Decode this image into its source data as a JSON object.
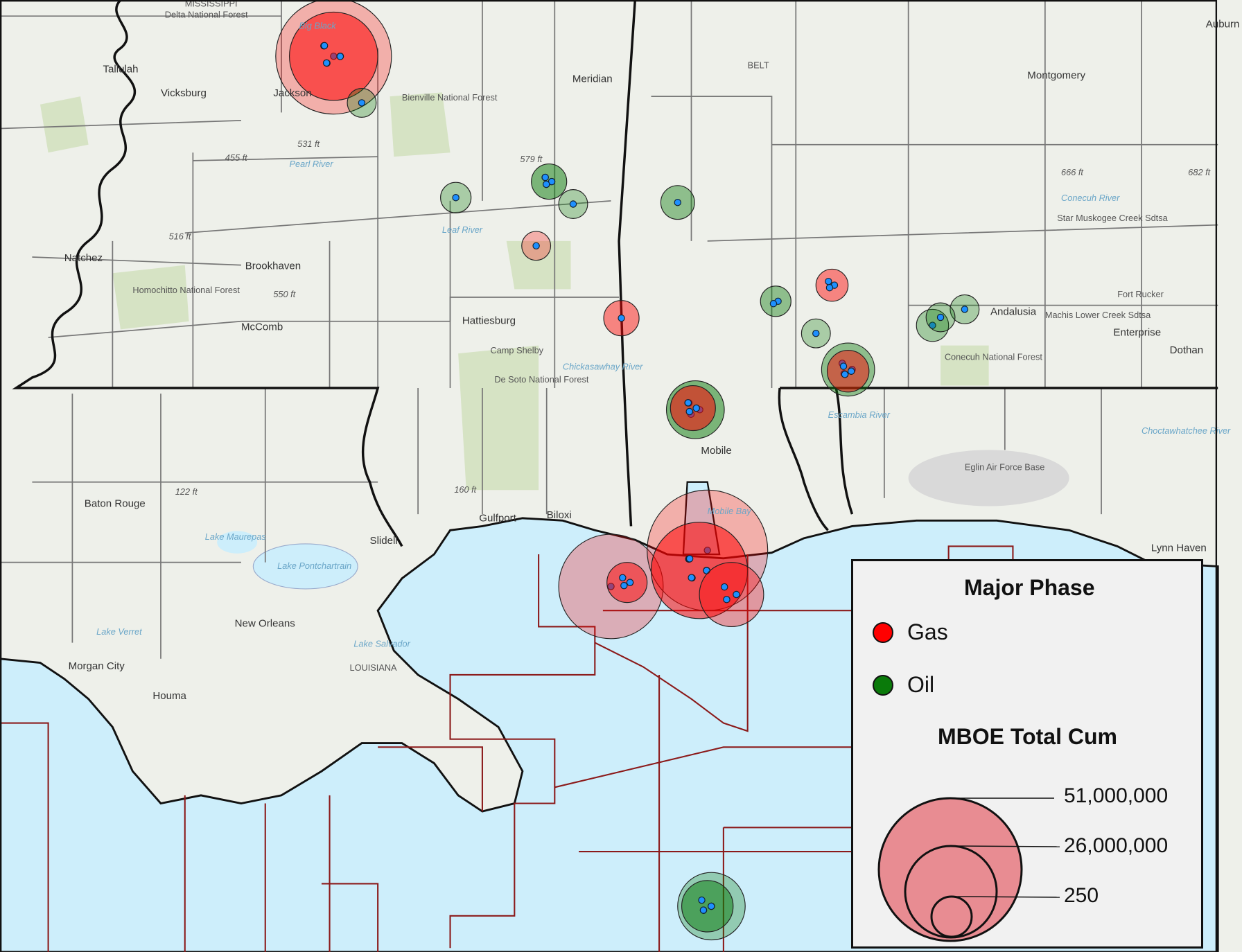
{
  "legend": {
    "phase_title": "Major Phase",
    "phases": [
      {
        "label": "Gas",
        "color": "#ff0000"
      },
      {
        "label": "Oil",
        "color": "#0a7a0a"
      }
    ],
    "size_title": "MBOE Total Cum",
    "size_values": [
      "51,000,000",
      "26,000,000",
      "250"
    ],
    "size_fill": "#e88c92"
  },
  "colors": {
    "land": "#eef0ea",
    "water": "#cdeefb",
    "forest": "#d6e3c4",
    "lease_lines": "#8b1a1a",
    "well_dot": "#1e90ff"
  },
  "map_labels": {
    "cities": [
      "Vicksburg",
      "Jackson",
      "Meridian",
      "Natchez",
      "Brookhaven",
      "McComb",
      "Hattiesburg",
      "Baton Rouge",
      "Slidell",
      "Gulfport",
      "Biloxi",
      "Mobile",
      "New Orleans",
      "Morgan City",
      "Houma",
      "Montgomery",
      "Andalusia",
      "Enterprise",
      "Dothan",
      "Auburn",
      "Tallulah",
      "Lynn Haven"
    ],
    "parks": [
      "Delta National Forest",
      "Bienville National Forest",
      "Homochitto National Forest",
      "Camp Shelby",
      "De Soto National Forest",
      "Conecuh National Forest",
      "Eglin Air Force Base",
      "Fort Rucker",
      "Star Muskogee Creek Sdtsa",
      "Machis Lower Creek Sdtsa"
    ],
    "water": [
      "Pearl River",
      "Leaf River",
      "Chickasawhay River",
      "Escambia River",
      "Conecuh River",
      "Choctawhatchee River",
      "Lake Maurepas",
      "Lake Pontchartrain",
      "Lake Verret",
      "Lake Salvador",
      "Big Black",
      "Mobile Bay"
    ],
    "elevations": [
      "531 ft",
      "455 ft",
      "579 ft",
      "516 ft",
      "550 ft",
      "122 ft",
      "160 ft",
      "666 ft",
      "682 ft"
    ],
    "states": [
      "MISSISSIPPI",
      "LOUISIANA"
    ],
    "other": [
      "BELT"
    ]
  }
}
